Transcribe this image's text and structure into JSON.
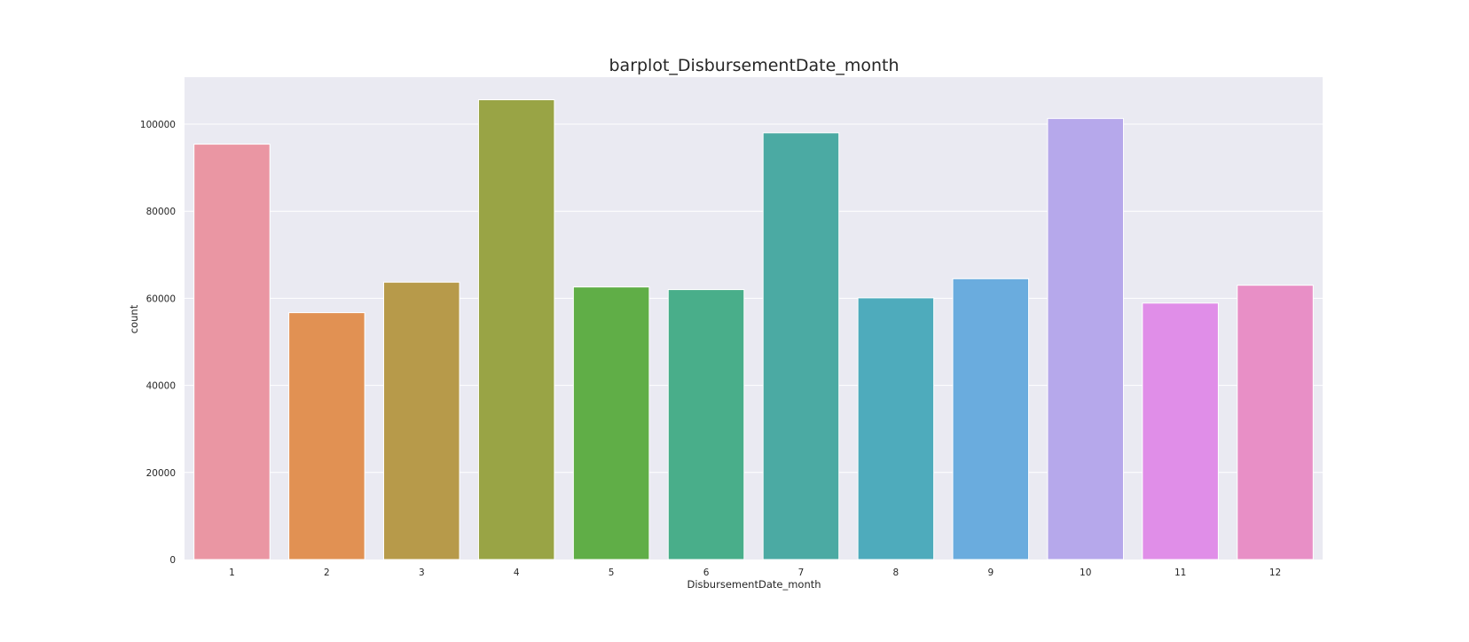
{
  "chart_data": {
    "type": "bar",
    "title": "barplot_DisbursementDate_month",
    "xlabel": "DisbursementDate_month",
    "ylabel": "count",
    "categories": [
      "1",
      "2",
      "3",
      "4",
      "5",
      "6",
      "7",
      "8",
      "9",
      "10",
      "11",
      "12"
    ],
    "values": [
      95400,
      56700,
      63700,
      105600,
      62600,
      62000,
      98000,
      60100,
      64500,
      101300,
      58900,
      63000
    ],
    "ylim": [
      0,
      110000
    ],
    "yticks": [
      0,
      20000,
      40000,
      60000,
      80000,
      100000
    ],
    "ytick_labels": [
      "0",
      "20000",
      "40000",
      "60000",
      "80000",
      "100000"
    ],
    "grid": true,
    "background": "#eaeaf2",
    "gridline_color": "#ffffff",
    "colors": [
      "#ea96a3",
      "#e19153",
      "#b79a4a",
      "#99a445",
      "#60ae47",
      "#49ae8a",
      "#4baaa3",
      "#4eabbc",
      "#6aacde",
      "#b6a8eb",
      "#e08ee8",
      "#e88fc6"
    ]
  }
}
